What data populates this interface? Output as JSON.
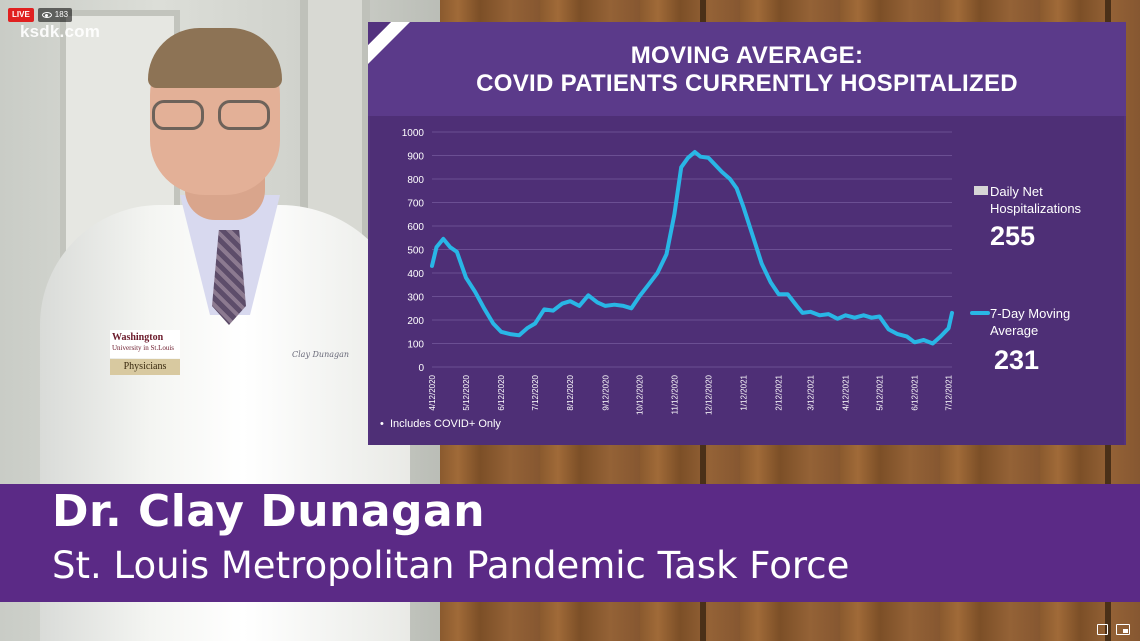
{
  "broadcast": {
    "live_label": "LIVE",
    "viewer_count": "183",
    "station_logo": "ksdk.com"
  },
  "slide": {
    "title_line1": "MOVING AVERAGE:",
    "title_line2": "COVID PATIENTS CURRENTLY HOSPITALIZED",
    "footnote": "Includes COVID+ Only",
    "legend": {
      "daily_label_line1": "Daily Net",
      "daily_label_line2": "Hospitalizations",
      "daily_value": "255",
      "moving_label_line1": "7-Day Moving",
      "moving_label_line2": "Average",
      "moving_value": "231"
    },
    "colors": {
      "background": "#53327e",
      "line": "#29b6e6",
      "text": "#ffffff"
    }
  },
  "chart_data": {
    "type": "line",
    "title": "MOVING AVERAGE: COVID PATIENTS CURRENTLY HOSPITALIZED",
    "ylim": [
      0,
      1000
    ],
    "yticks": [
      0,
      100,
      200,
      300,
      400,
      500,
      600,
      700,
      800,
      900,
      1000
    ],
    "xticks": [
      "4/12/2020",
      "5/12/2020",
      "6/12/2020",
      "7/12/2020",
      "8/12/2020",
      "9/12/2020",
      "10/12/2020",
      "11/12/2020",
      "12/12/2020",
      "1/12/2021",
      "2/12/2021",
      "3/12/2021",
      "4/12/2021",
      "5/12/2021",
      "6/12/2021",
      "7/12/2021"
    ],
    "grid": true,
    "legend_position": "right",
    "series": [
      {
        "name": "7-Day Moving Average",
        "color": "#29b6e6",
        "x": [
          "2020-04-12",
          "2020-04-16",
          "2020-04-22",
          "2020-04-28",
          "2020-05-04",
          "2020-05-12",
          "2020-05-20",
          "2020-05-28",
          "2020-06-05",
          "2020-06-12",
          "2020-06-20",
          "2020-06-28",
          "2020-07-05",
          "2020-07-12",
          "2020-07-20",
          "2020-07-28",
          "2020-08-05",
          "2020-08-12",
          "2020-08-20",
          "2020-08-28",
          "2020-09-01",
          "2020-09-05",
          "2020-09-12",
          "2020-09-20",
          "2020-09-28",
          "2020-10-05",
          "2020-10-12",
          "2020-10-20",
          "2020-10-28",
          "2020-11-05",
          "2020-11-12",
          "2020-11-18",
          "2020-11-24",
          "2020-11-30",
          "2020-12-05",
          "2020-12-12",
          "2020-12-18",
          "2020-12-24",
          "2020-12-31",
          "2021-01-06",
          "2021-01-12",
          "2021-01-20",
          "2021-01-28",
          "2021-02-05",
          "2021-02-12",
          "2021-02-20",
          "2021-02-28",
          "2021-03-05",
          "2021-03-12",
          "2021-03-20",
          "2021-03-28",
          "2021-04-05",
          "2021-04-12",
          "2021-04-20",
          "2021-04-28",
          "2021-05-05",
          "2021-05-12",
          "2021-05-20",
          "2021-05-28",
          "2021-06-05",
          "2021-06-12",
          "2021-06-20",
          "2021-06-28",
          "2021-07-05",
          "2021-07-12",
          "2021-07-15"
        ],
        "y": [
          430,
          510,
          545,
          510,
          490,
          380,
          320,
          250,
          185,
          150,
          140,
          135,
          165,
          185,
          245,
          240,
          270,
          280,
          260,
          305,
          290,
          275,
          260,
          265,
          260,
          250,
          300,
          350,
          400,
          480,
          650,
          850,
          890,
          915,
          895,
          890,
          860,
          830,
          800,
          760,
          680,
          560,
          440,
          360,
          310,
          310,
          260,
          230,
          235,
          220,
          225,
          205,
          220,
          210,
          220,
          210,
          215,
          160,
          140,
          130,
          105,
          115,
          100,
          130,
          165,
          230
        ]
      }
    ]
  },
  "lower_third": {
    "name": "Dr. Clay Dunagan",
    "role": "St. Louis Metropolitan Pandemic Task Force"
  },
  "presenter_badge": {
    "logo_line1": "Washington",
    "logo_line2": "University in St.Louis",
    "tag": "Physicians",
    "embroidery": "Clay Dunagan"
  }
}
